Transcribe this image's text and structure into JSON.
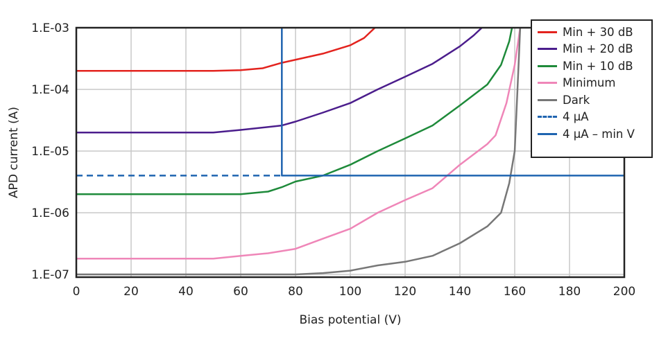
{
  "chart_data": {
    "type": "line",
    "xlabel": "Bias potential (V)",
    "ylabel": "APD current (A)",
    "xlim": [
      0,
      200
    ],
    "ylim": [
      9e-08,
      0.001
    ],
    "yscale": "log",
    "grid": true,
    "legend_position": "top-right",
    "x_ticks": [
      "0",
      "20",
      "40",
      "60",
      "80",
      "100",
      "120",
      "140",
      "160",
      "180",
      "200"
    ],
    "y_ticks": [
      {
        "value": 0.001,
        "label": "1.E-03"
      },
      {
        "value": 0.0001,
        "label": "1.E-04"
      },
      {
        "value": 1e-05,
        "label": "1.E-05"
      },
      {
        "value": 1e-06,
        "label": "1.E-06"
      },
      {
        "value": 1e-07,
        "label": "1.E-07"
      }
    ],
    "series": [
      {
        "name": "Min + 30 dB",
        "color": "#e3231e",
        "dash": false,
        "points": [
          [
            0,
            0.0002
          ],
          [
            50,
            0.0002
          ],
          [
            60,
            0.000205
          ],
          [
            68,
            0.00022
          ],
          [
            75,
            0.00027
          ],
          [
            90,
            0.00038
          ],
          [
            100,
            0.00052
          ],
          [
            105,
            0.00068
          ],
          [
            109,
            0.001
          ]
        ]
      },
      {
        "name": "Min + 20 dB",
        "color": "#4b1d8c",
        "dash": false,
        "points": [
          [
            0,
            2e-05
          ],
          [
            50,
            2e-05
          ],
          [
            60,
            2.2e-05
          ],
          [
            75,
            2.6e-05
          ],
          [
            80,
            3e-05
          ],
          [
            90,
            4.2e-05
          ],
          [
            100,
            6e-05
          ],
          [
            110,
            0.0001
          ],
          [
            120,
            0.00016
          ],
          [
            130,
            0.00026
          ],
          [
            140,
            0.0005
          ],
          [
            145,
            0.00075
          ],
          [
            148,
            0.001
          ]
        ]
      },
      {
        "name": "Min + 10 dB",
        "color": "#1e8a3a",
        "dash": false,
        "points": [
          [
            0,
            2e-06
          ],
          [
            60,
            2e-06
          ],
          [
            70,
            2.2e-06
          ],
          [
            75,
            2.6e-06
          ],
          [
            80,
            3.2e-06
          ],
          [
            90,
            4e-06
          ],
          [
            100,
            6e-06
          ],
          [
            110,
            1e-05
          ],
          [
            120,
            1.6e-05
          ],
          [
            130,
            2.6e-05
          ],
          [
            140,
            5.5e-05
          ],
          [
            150,
            0.00012
          ],
          [
            155,
            0.00025
          ],
          [
            158,
            0.0006
          ],
          [
            159,
            0.001
          ]
        ]
      },
      {
        "name": "Minimum",
        "color": "#ef86b8",
        "dash": false,
        "points": [
          [
            0,
            1.8e-07
          ],
          [
            50,
            1.8e-07
          ],
          [
            60,
            2e-07
          ],
          [
            70,
            2.2e-07
          ],
          [
            80,
            2.6e-07
          ],
          [
            90,
            3.8e-07
          ],
          [
            100,
            5.5e-07
          ],
          [
            110,
            1e-06
          ],
          [
            120,
            1.6e-06
          ],
          [
            130,
            2.5e-06
          ],
          [
            140,
            6e-06
          ],
          [
            150,
            1.3e-05
          ],
          [
            153,
            1.8e-05
          ],
          [
            157,
            6e-05
          ],
          [
            160,
            0.00025
          ],
          [
            162,
            0.001
          ]
        ]
      },
      {
        "name": "Dark",
        "color": "#777777",
        "dash": false,
        "points": [
          [
            0,
            1e-07
          ],
          [
            80,
            1e-07
          ],
          [
            90,
            1.05e-07
          ],
          [
            100,
            1.15e-07
          ],
          [
            110,
            1.4e-07
          ],
          [
            120,
            1.6e-07
          ],
          [
            130,
            2e-07
          ],
          [
            140,
            3.2e-07
          ],
          [
            150,
            6e-07
          ],
          [
            155,
            1e-06
          ],
          [
            158,
            3e-06
          ],
          [
            160,
            1e-05
          ],
          [
            161,
            0.0001
          ],
          [
            162,
            0.001
          ]
        ]
      },
      {
        "name": "4 µA",
        "color": "#1f64b0",
        "dash": true,
        "points": [
          [
            0,
            4e-06
          ],
          [
            75,
            4e-06
          ]
        ]
      },
      {
        "name": "4 µA – min V",
        "color": "#1f64b0",
        "dash": false,
        "points": [
          [
            75,
            0.001
          ],
          [
            75,
            4e-06
          ],
          [
            200,
            4e-06
          ]
        ]
      }
    ]
  }
}
